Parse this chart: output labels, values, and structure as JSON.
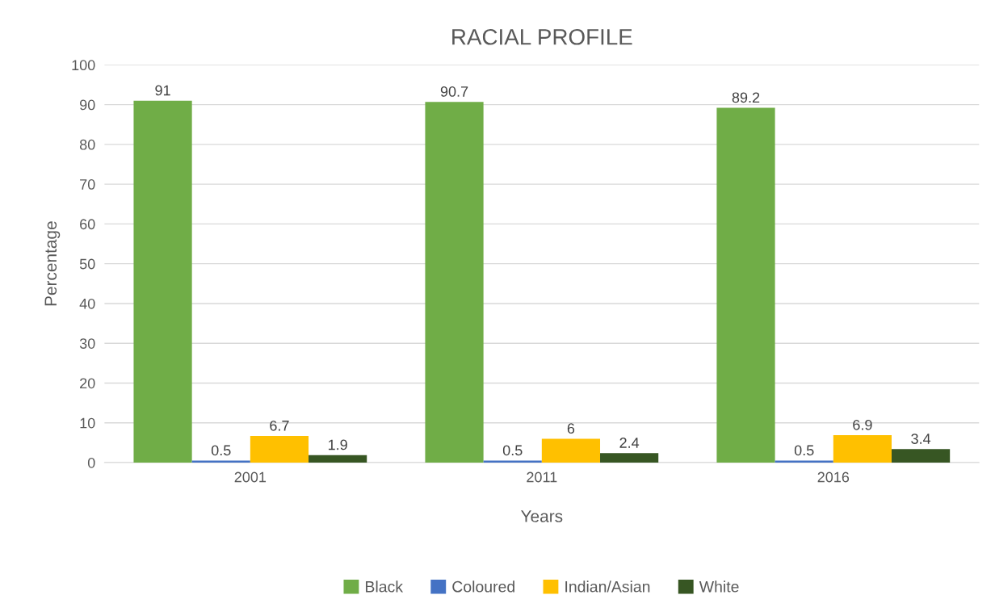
{
  "chart_data": {
    "type": "bar",
    "title": "RACIAL PROFILE",
    "xlabel": "Years",
    "ylabel": "Percentage",
    "categories": [
      "2001",
      "2011",
      "2016"
    ],
    "series": [
      {
        "name": "Black",
        "color": "#70ad47",
        "values": [
          91,
          90.7,
          89.2
        ]
      },
      {
        "name": "Coloured",
        "color": "#4472c4",
        "values": [
          0.5,
          0.5,
          0.5
        ]
      },
      {
        "name": "Indian/Asian",
        "color": "#ffc000",
        "values": [
          6.7,
          6,
          6.9
        ]
      },
      {
        "name": "White",
        "color": "#375623",
        "values": [
          1.9,
          2.4,
          3.4
        ]
      }
    ],
    "ylim": [
      0,
      100
    ],
    "yticks": [
      0,
      10,
      20,
      30,
      40,
      50,
      60,
      70,
      80,
      90,
      100
    ],
    "grid": "y",
    "legend": "bottom",
    "data_labels": true
  }
}
